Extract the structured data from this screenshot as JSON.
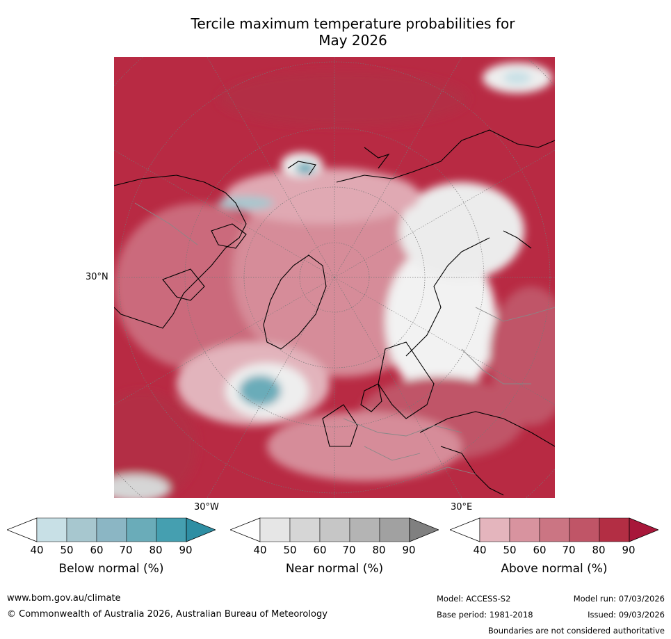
{
  "title_line1": "Tercile maximum temperature probabilities for",
  "title_line2": "May 2026",
  "axis_labels": {
    "lat": "30°N",
    "lon_west": "30°W",
    "lon_east": "30°E"
  },
  "colorbars": [
    {
      "label": "Below normal (%)",
      "ticks": [
        "40",
        "50",
        "60",
        "70",
        "80",
        "90"
      ],
      "colors": [
        "#ffffff",
        "#c8e0e6",
        "#a7c7cf",
        "#8bb6c4",
        "#6aacb9",
        "#459fb0",
        "#2e8ea3"
      ]
    },
    {
      "label": "Near normal (%)",
      "ticks": [
        "40",
        "50",
        "60",
        "70",
        "80",
        "90"
      ],
      "colors": [
        "#ffffff",
        "#e6e6e6",
        "#d6d6d6",
        "#c6c6c6",
        "#b4b4b4",
        "#a1a1a1",
        "#808080"
      ]
    },
    {
      "label": "Above normal (%)",
      "ticks": [
        "40",
        "50",
        "60",
        "70",
        "80",
        "90"
      ],
      "colors": [
        "#ffffff",
        "#e4b5bd",
        "#d8939f",
        "#cb7583",
        "#c05567",
        "#b32e44",
        "#a8173a"
      ]
    }
  ],
  "footer": {
    "url": "www.bom.gov.au/climate",
    "copyright": "© Commonwealth of Australia 2026, Australian Bureau of Meteorology",
    "model": "Model: ACCESS-S2",
    "model_run": "Model run: 07/03/2026",
    "base_period": "Base period: 1981-2018",
    "issued": "Issued: 09/03/2026",
    "disclaimer": "Boundaries are not considered authoritative"
  }
}
